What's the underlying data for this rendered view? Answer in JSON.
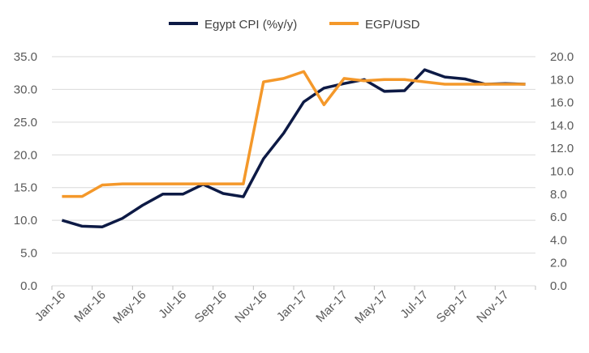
{
  "chart_data": {
    "type": "line",
    "x": [
      "Jan-16",
      "Feb-16",
      "Mar-16",
      "Apr-16",
      "May-16",
      "Jun-16",
      "Jul-16",
      "Aug-16",
      "Sep-16",
      "Oct-16",
      "Nov-16",
      "Dec-16",
      "Jan-17",
      "Feb-17",
      "Mar-17",
      "Apr-17",
      "May-17",
      "Jun-17",
      "Jul-17",
      "Aug-17",
      "Sep-17",
      "Oct-17",
      "Nov-17",
      "Dec-17"
    ],
    "x_tick_labels": [
      "Jan-16",
      "Mar-16",
      "May-16",
      "Jul-16",
      "Sep-16",
      "Nov-16",
      "Jan-17",
      "Mar-17",
      "May-17",
      "Jul-17",
      "Sep-17",
      "Nov-17"
    ],
    "y_left": {
      "ticks": [
        "0.0",
        "5.0",
        "10.0",
        "15.0",
        "20.0",
        "25.0",
        "30.0",
        "35.0"
      ],
      "lim": [
        0,
        35
      ]
    },
    "y_right": {
      "ticks": [
        "0.0",
        "2.0",
        "4.0",
        "6.0",
        "8.0",
        "10.0",
        "12.0",
        "14.0",
        "16.0",
        "18.0",
        "20.0"
      ],
      "lim": [
        0,
        20
      ]
    },
    "grid": "horizontal",
    "legend_position": "top-center",
    "series": [
      {
        "name": "Egypt CPI (%y/y)",
        "axis": "left",
        "color": "#0d1a45",
        "values": [
          10.0,
          9.1,
          9.0,
          10.3,
          12.3,
          14.0,
          14.0,
          15.5,
          14.1,
          13.6,
          19.4,
          23.3,
          28.1,
          30.2,
          30.9,
          31.5,
          29.7,
          29.8,
          33.0,
          31.9,
          31.6,
          30.8,
          30.9,
          30.8
        ]
      },
      {
        "name": "EGP/USD",
        "axis": "right",
        "color": "#f4982a",
        "values": [
          7.8,
          7.8,
          8.8,
          8.9,
          8.9,
          8.9,
          8.9,
          8.9,
          8.9,
          8.9,
          17.8,
          18.1,
          18.7,
          15.8,
          18.1,
          17.9,
          18.0,
          18.0,
          17.8,
          17.6,
          17.6,
          17.6,
          17.6,
          17.6
        ]
      }
    ]
  }
}
